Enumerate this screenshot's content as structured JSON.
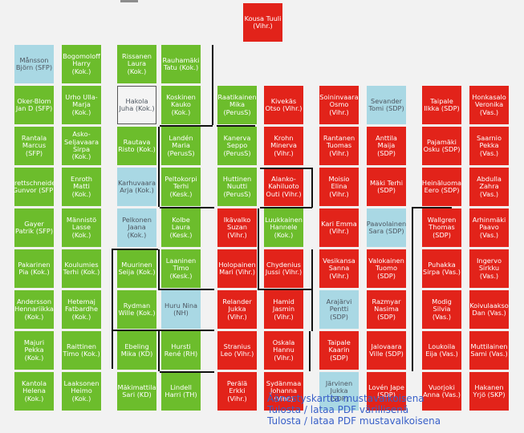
{
  "colors": {
    "Vihr.": "#e2231a",
    "SDP": "#e2231a",
    "Vas.": "#e2231a",
    "SKP": "#e2231a",
    "RKP": "#e2231a",
    "Kok.": "#6cbd2c",
    "SFP": "#6cbd2c",
    "PerusS": "#6cbd2c",
    "Kesk.": "#6cbd2c",
    "KD": "#6cbd2c",
    "TH": "#6cbd2c",
    "absent": "#a9d8e4",
    "unknown": "#f4f4f4"
  },
  "columns": [
    [
      "Månsson Björn (SFP)",
      "Oker-Blom Jan D (SFP)",
      "Rantala Marcus (SFP)",
      "Brettschneider Gunvor (SFP)",
      "Gayer Patrik (SFP)",
      "Pakarinen Pia (Kok.)",
      "Andersson Hennariikka (Kok.)",
      "Majuri Pekka (Kok.)",
      "Kantola Helena (Kok.)"
    ],
    [
      "Bogomoloff Harry (Kok.)",
      "Urho Ulla-Marja (Kok.)",
      "Asko-Seljavaara Sirpa (Kok.)",
      "Enroth Matti (Kok.)",
      "Männistö Lasse (Kok.)",
      "Koulumies Terhi (Kok.)",
      "Hetemaj Fatbardhe (Kok.)",
      "Raittinen Timo (Kok.)",
      "Laaksonen Heimo (Kok.)"
    ],
    [
      "Rissanen Laura (Kok.)",
      "Hakola Juha (Kok.)",
      "Rautava Risto (Kok.)",
      "Karhuvaara Arja (Kok.)",
      "Pelkonen Jaana (Kok.)",
      "Muurinen Seija (Kok.)",
      "Rydman Wille (Kok.)",
      "Ebeling Mika (KD)",
      "Mäkimattila Sari (KD)"
    ],
    [
      "Rauhamäki Tatu (Kok.)",
      "Koskinen Kauko (Kok.)",
      "Landén Maria (PerusS)",
      "Peltokorpi Terhi (Kesk.)",
      "Kolbe Laura (Kesk.)",
      "Laaninen Timo (Kesk.)",
      "Huru Nina (NH)",
      "Hursti René (RH)",
      "Lindell Harri (TH)"
    ],
    [
      "Raatikainen Mika (PerusS)",
      "Kanerva Seppo (PerusS)",
      "Huttinen Nuutti (PerusS)",
      "Ikävalko Suzan (Vihr.)",
      "Holopainen Mari (Vihr.)",
      "Relander Jukka (Vihr.)",
      "Stranius Leo (Vihr.)",
      "Perälä Erkki (Vihr.)"
    ],
    [
      "Kivekäs Otso (Vihr.)",
      "Krohn Minerva (Vihr.)",
      "Alanko-Kahiluoto Outi (Vihr.)",
      "Luukkainen Hannele (Kok.)",
      "Chydenius Jussi (Vihr.)",
      "Hamid Jasmin (Vihr.)",
      "Oskala Hannu (Vihr.)",
      "Sydänmaa Johanna (Vihr.)"
    ],
    [
      "Soininvaara Osmo (Vihr.)",
      "Rantanen Tuomas (Vihr.)",
      "Moisio Elina (Vihr.)",
      "Kari Emma (Vihr.)",
      "Vesikansa Sanna (Vihr.)",
      "Arajärvi Pentti (SDP)",
      "Taipale Kaarin (SDP)",
      "Järvinen Jukka (SDP)"
    ],
    [
      "Sevander Tomi (SDP)",
      "Anttila Maija (SDP)",
      "Mäki Terhi (SDP)",
      "Paavolainen Sara (SDP)",
      "Valokainen Tuomo (SDP)",
      "Razmyar Nasima (SDP)",
      "Jalovaara Ville (SDP)",
      "Lovén Jape (SDP)"
    ],
    [
      "Taipale Ilkka (SDP)",
      "Pajamäki Osku (SDP)",
      "Heinäluoma Eero (SDP)",
      "Wallgren Thomas (SDP)",
      "Puhakka Sirpa (Vas.)",
      "Modig Silvia (Vas.)",
      "Loukoila Eija (Vas.)",
      "Vuorjoki Anna (Vas.)"
    ],
    [
      "Honkasalo Veronika (Vas.)",
      "Saarnio Pekka (Vas.)",
      "Abdulla Zahra (Vas.)",
      "Arhinmäki Paavo (Vas.)",
      "Ingervo Sirkku (Vas.)",
      "Koivulaakso Dan (Vas.)",
      "Muttilainen Sami (Vas.)",
      "Hakanen Yrjö (SKP)"
    ]
  ],
  "chair": "Kousa Tuuli (Vihr.)",
  "seat_status": {
    "Månsson Björn (SFP)": "absent",
    "Hakola Juha (Kok.)": "unknown",
    "Karhuvaara Arja (Kok.)": "absent",
    "Pelkonen Jaana (Kok.)": "absent",
    "Huru Nina (NH)": "absent",
    "Sevander Tomi (SDP)": "absent",
    "Paavolainen Sara (SDP)": "absent",
    "Arajärvi Pentti (SDP)": "absent",
    "Järvinen Jukka (SDP)": "absent"
  },
  "links": [
    "Äänestyskartta mustavalkoisena",
    "Tulosta / lataa PDF värillisenä",
    "Tulosta / lataa PDF mustavalkoisena"
  ]
}
